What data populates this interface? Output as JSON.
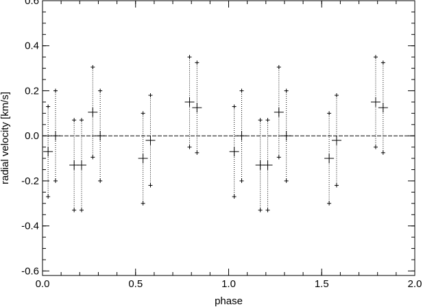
{
  "chart_data": {
    "type": "scatter",
    "xlabel": "phase",
    "ylabel": "radial velocity [km/s]",
    "xlim": [
      0.0,
      2.0
    ],
    "ylim": [
      -0.62,
      0.6
    ],
    "xticks": [
      0.0,
      0.5,
      1.0,
      1.5,
      2.0
    ],
    "xtick_labels": [
      "0.0",
      "0.5",
      "1.0",
      "1.5",
      "2.0"
    ],
    "yticks": [
      -0.6,
      -0.4,
      -0.2,
      0.0,
      0.2,
      0.4,
      0.6
    ],
    "ytick_labels": [
      "-0.6",
      "-0.4",
      "-0.2",
      "0.0",
      "0.2",
      "0.4",
      "0.6"
    ],
    "zero_line": 0.0,
    "error_bars": "dotted",
    "points": [
      {
        "x": 0.03,
        "y": -0.07,
        "ymin": -0.27,
        "ymax": 0.13
      },
      {
        "x": 0.07,
        "y": 0.0,
        "ymin": -0.2,
        "ymax": 0.2
      },
      {
        "x": 0.17,
        "y": -0.13,
        "ymin": -0.33,
        "ymax": 0.07
      },
      {
        "x": 0.21,
        "y": -0.13,
        "ymin": -0.33,
        "ymax": 0.07
      },
      {
        "x": 0.27,
        "y": 0.105,
        "ymin": -0.095,
        "ymax": 0.305
      },
      {
        "x": 0.31,
        "y": 0.0,
        "ymin": -0.2,
        "ymax": 0.2
      },
      {
        "x": 0.54,
        "y": -0.1,
        "ymin": -0.3,
        "ymax": 0.1
      },
      {
        "x": 0.58,
        "y": -0.02,
        "ymin": -0.22,
        "ymax": 0.18
      },
      {
        "x": 0.79,
        "y": 0.15,
        "ymin": -0.05,
        "ymax": 0.35
      },
      {
        "x": 0.83,
        "y": 0.125,
        "ymin": -0.075,
        "ymax": 0.325
      },
      {
        "x": 1.03,
        "y": -0.07,
        "ymin": -0.27,
        "ymax": 0.13
      },
      {
        "x": 1.07,
        "y": 0.0,
        "ymin": -0.2,
        "ymax": 0.2
      },
      {
        "x": 1.17,
        "y": -0.13,
        "ymin": -0.33,
        "ymax": 0.07
      },
      {
        "x": 1.21,
        "y": -0.13,
        "ymin": -0.33,
        "ymax": 0.07
      },
      {
        "x": 1.27,
        "y": 0.105,
        "ymin": -0.095,
        "ymax": 0.305
      },
      {
        "x": 1.31,
        "y": 0.0,
        "ymin": -0.2,
        "ymax": 0.2
      },
      {
        "x": 1.54,
        "y": -0.1,
        "ymin": -0.3,
        "ymax": 0.1
      },
      {
        "x": 1.58,
        "y": -0.02,
        "ymin": -0.22,
        "ymax": 0.18
      },
      {
        "x": 1.79,
        "y": 0.15,
        "ymin": -0.05,
        "ymax": 0.35
      },
      {
        "x": 1.83,
        "y": 0.125,
        "ymin": -0.075,
        "ymax": 0.325
      }
    ]
  }
}
